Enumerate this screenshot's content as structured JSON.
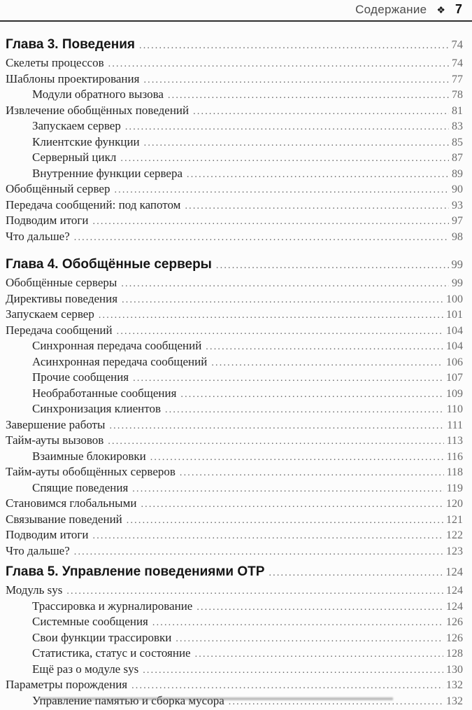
{
  "header": {
    "title": "Содержание",
    "ornament": "❖",
    "page": "7"
  },
  "sections": [
    {
      "heading": {
        "label": "Глава 3. Поведения",
        "page": "74"
      },
      "entries": [
        {
          "label": "Скелеты процессов",
          "page": "74",
          "level": 1
        },
        {
          "label": "Шаблоны проектирования",
          "page": "77",
          "level": 1
        },
        {
          "label": "Модули обратного вызова",
          "page": "78",
          "level": 2
        },
        {
          "label": "Извлечение обобщённых поведений",
          "page": "81",
          "level": 1
        },
        {
          "label": "Запускаем сервер",
          "page": "83",
          "level": 2
        },
        {
          "label": "Клиентские функции",
          "page": "85",
          "level": 2
        },
        {
          "label": "Серверный цикл",
          "page": "87",
          "level": 2
        },
        {
          "label": "Внутренние функции сервера",
          "page": "89",
          "level": 2
        },
        {
          "label": "Обобщённый сервер",
          "page": "90",
          "level": 1
        },
        {
          "label": "Передача сообщений: под капотом",
          "page": "93",
          "level": 1
        },
        {
          "label": "Подводим итоги",
          "page": "97",
          "level": 1
        },
        {
          "label": "Что дальше?",
          "page": "98",
          "level": 1
        }
      ]
    },
    {
      "heading": {
        "label": "Глава 4. Обобщённые серверы",
        "page": "99"
      },
      "entries": [
        {
          "label": "Обобщённые серверы",
          "page": "99",
          "level": 1
        },
        {
          "label": "Директивы поведения",
          "page": "100",
          "level": 1
        },
        {
          "label": "Запускаем сервер",
          "page": "101",
          "level": 1
        },
        {
          "label": "Передача сообщений",
          "page": "104",
          "level": 1
        },
        {
          "label": "Синхронная передача сообщений",
          "page": "104",
          "level": 2
        },
        {
          "label": "Асинхронная передача сообщений",
          "page": "106",
          "level": 2
        },
        {
          "label": "Прочие сообщения",
          "page": "107",
          "level": 2
        },
        {
          "label": "Необработанные сообщения",
          "page": "109",
          "level": 2
        },
        {
          "label": "Синхронизация клиентов",
          "page": "110",
          "level": 2
        },
        {
          "label": "Завершение работы",
          "page": "111",
          "level": 1
        },
        {
          "label": "Тайм-ауты вызовов",
          "page": "113",
          "level": 1
        },
        {
          "label": "Взаимные блокировки",
          "page": "116",
          "level": 2
        },
        {
          "label": "Тайм-ауты обобщённых серверов",
          "page": "118",
          "level": 1
        },
        {
          "label": "Спящие поведения",
          "page": "119",
          "level": 2
        },
        {
          "label": "Становимся глобальными",
          "page": "120",
          "level": 1
        },
        {
          "label": "Связывание поведений",
          "page": "121",
          "level": 1
        },
        {
          "label": "Подводим итоги",
          "page": "122",
          "level": 1
        },
        {
          "label": "Что дальше?",
          "page": "123",
          "level": 1
        }
      ]
    },
    {
      "heading": {
        "label": "Глава 5. Управление поведениями OTP",
        "page": "124"
      },
      "entries": [
        {
          "label": "Модуль sys",
          "page": "124",
          "level": 1
        },
        {
          "label": "Трассировка и журналирование",
          "page": "124",
          "level": 2
        },
        {
          "label": "Системные сообщения",
          "page": "126",
          "level": 2
        },
        {
          "label": "Свои функции трассировки",
          "page": "126",
          "level": 2
        },
        {
          "label": "Статистика, статус и состояние",
          "page": "128",
          "level": 2
        },
        {
          "label": "Ещё раз о модуле sys",
          "page": "130",
          "level": 2
        },
        {
          "label": "Параметры порождения",
          "page": "132",
          "level": 1
        },
        {
          "label": "Управление памятью и сборка мусора",
          "page": "132",
          "level": 2
        }
      ]
    }
  ]
}
